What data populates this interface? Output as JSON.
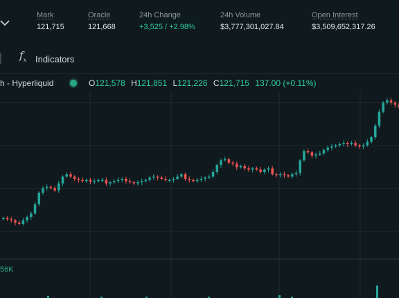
{
  "header": {
    "stats": [
      {
        "label": "Mark",
        "value": "121,715",
        "positive": false
      },
      {
        "label": "Oracle",
        "value": "121,668",
        "positive": false
      },
      {
        "label": "24h Change",
        "value": "+3,525 / +2.98%",
        "positive": true
      },
      {
        "label": "24h Volume",
        "value": "$3,777,301,027.84",
        "positive": false
      },
      {
        "label": "Open Interest",
        "value": "$3,509,652,317.26",
        "positive": false
      }
    ]
  },
  "toolbar": {
    "indicators_label": "Indicators",
    "indicators_icon": "function-fx-icon"
  },
  "legend": {
    "title": "h - Hyperliquid",
    "ohlc": [
      {
        "key": "O",
        "value": "121,578"
      },
      {
        "key": "H",
        "value": "121,851"
      },
      {
        "key": "L",
        "value": "121,226"
      },
      {
        "key": "C",
        "value": "121,715"
      }
    ],
    "change": "137.00 (+0.11%)"
  },
  "volume": {
    "label": "56K"
  },
  "colors": {
    "up": "#26a69a",
    "down": "#ef5350",
    "background": "#101a1e",
    "grid": "#1e2b30"
  },
  "chart_data": {
    "type": "candlestick",
    "close_trend": [
      118200,
      118150,
      118100,
      118000,
      117950,
      118100,
      118250,
      118400,
      118800,
      119300,
      119500,
      119550,
      119500,
      119400,
      119700,
      120000,
      120100,
      120000,
      119900,
      119850,
      119800,
      119850,
      119780,
      119800,
      119850,
      119850,
      119700,
      119750,
      119800,
      119850,
      119900,
      119800,
      119750,
      119700,
      119750,
      119800,
      119850,
      119950,
      120000,
      119950,
      119900,
      119850,
      119850,
      119900,
      120000,
      120100,
      119900,
      119850,
      119800,
      119850,
      119900,
      119950,
      120000,
      120200,
      120500,
      120700,
      120750,
      120600,
      120550,
      120400,
      120450,
      120350,
      120300,
      120350,
      120300,
      120200,
      120300,
      120350,
      120100,
      120050,
      120100,
      120050,
      120000,
      120100,
      120150,
      120700,
      121100,
      121050,
      120900,
      120950,
      121000,
      121150,
      121250,
      121300,
      121350,
      121400,
      121450,
      121400,
      121450,
      121350,
      121300,
      121350,
      121500,
      121700,
      122200,
      122800,
      123200,
      123300,
      123200,
      123100,
      123000
    ]
  }
}
